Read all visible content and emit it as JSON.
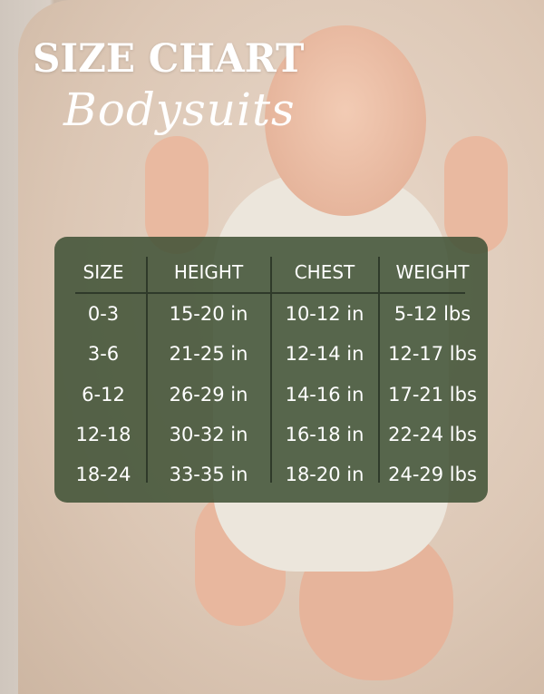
{
  "title": "SIZE CHART",
  "subtitle": "Bodysuits",
  "colors": {
    "panel": "#3e5034",
    "text": "#ffffff",
    "divider": "#2f3a2a"
  },
  "table": {
    "headers": [
      "SIZE",
      "HEIGHT",
      "CHEST",
      "WEIGHT"
    ],
    "rows": [
      [
        "0-3",
        "15-20 in",
        "10-12 in",
        "5-12 lbs"
      ],
      [
        "3-6",
        "21-25 in",
        "12-14 in",
        "12-17 lbs"
      ],
      [
        "6-12",
        "26-29 in",
        "14-16 in",
        "17-21 lbs"
      ],
      [
        "12-18",
        "30-32 in",
        "16-18 in",
        "22-24 lbs"
      ],
      [
        "18-24",
        "33-35 in",
        "18-20 in",
        "24-29 lbs"
      ]
    ]
  }
}
